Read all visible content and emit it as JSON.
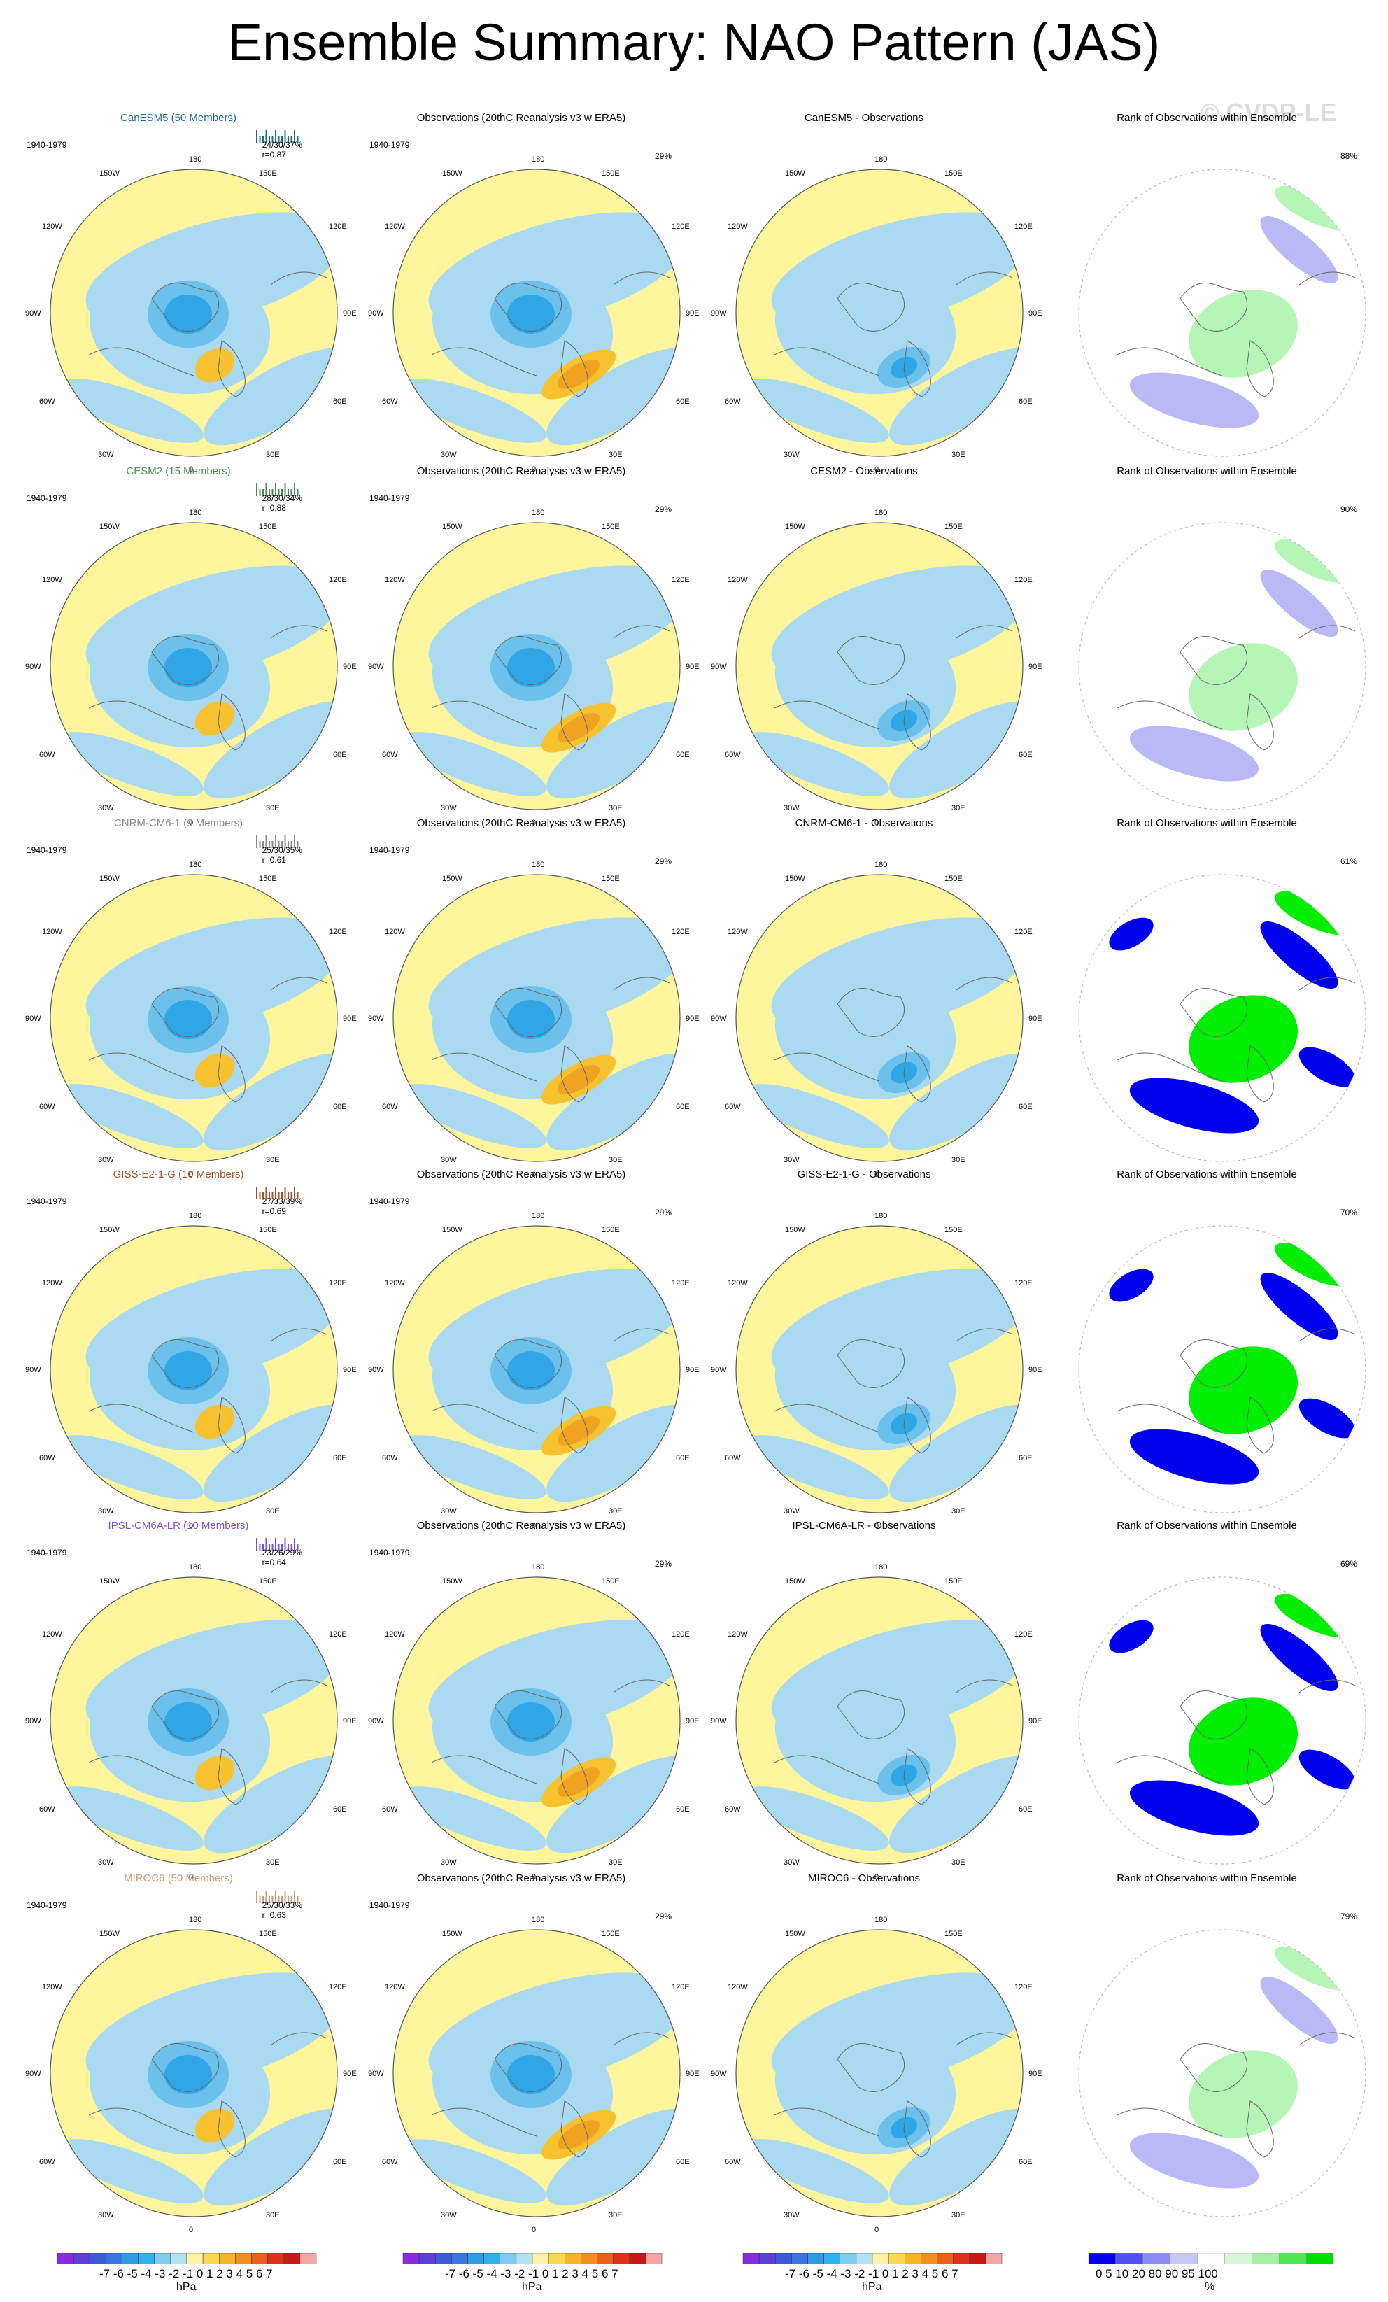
{
  "title": "Ensemble Summary: NAO Pattern (JAS)",
  "watermark": "© CVDP-LE",
  "colors": {
    "pos_light": "#fff59d",
    "neg_light": "#a9daf2",
    "neg_mid": "#6cc0ec",
    "neg_dark": "#31a6e6",
    "pos_mid": "#f7c12f",
    "pos_dark": "#f0a321",
    "rank_low": "#0000ee",
    "rank_lowmid": "#b9b9f5",
    "rank_high": "#00ee00"
  },
  "col_titles": {
    "obs": "Observations (20thC Reanalysis v3 w ERA5)",
    "rank": "Rank of Observations within Ensemble"
  },
  "period": "1940-1979",
  "obs_pct": "29%",
  "lon_labels": {
    "top": "180",
    "bottom": "0",
    "tl": "150W",
    "tr": "150E",
    "ul": "120W",
    "ur": "120E",
    "ml": "90W",
    "mr": "90E",
    "ll": "60W",
    "lr": "60E",
    "bl": "30W",
    "br": "30E"
  },
  "rows": [
    {
      "model": "CanESM5 (50 Members)",
      "model_color": "#1c6c8c",
      "stats": "24/30/37%",
      "r": "r=0.87",
      "diff_title": "CanESM5 - Observations",
      "rank_pct": "88%"
    },
    {
      "model": "CESM2 (15 Members)",
      "model_color": "#4a8b5a",
      "stats": "28/30/34%",
      "r": "r=0.88",
      "diff_title": "CESM2 - Observations",
      "rank_pct": "90%"
    },
    {
      "model": "CNRM-CM6-1 (9 Members)",
      "model_color": "#8a8a8a",
      "stats": "25/30/35%",
      "r": "r=0.61",
      "diff_title": "CNRM-CM6-1 - Observations",
      "rank_pct": "61%"
    },
    {
      "model": "GISS-E2-1-G (10 Members)",
      "model_color": "#a0522d",
      "stats": "27/33/39%",
      "r": "r=0.69",
      "diff_title": "GISS-E2-1-G - Observations",
      "rank_pct": "70%"
    },
    {
      "model": "IPSL-CM6A-LR (10 Members)",
      "model_color": "#7b4fd6",
      "stats": "23/26/29%",
      "r": "r=0.64",
      "diff_title": "IPSL-CM6A-LR - Observations",
      "rank_pct": "69%"
    },
    {
      "model": "MIROC6 (50 Members)",
      "model_color": "#c9a07a",
      "stats": "25/30/33%",
      "r": "r=0.63",
      "diff_title": "MIROC6 - Observations",
      "rank_pct": "79%"
    }
  ],
  "colorbar_hpa": {
    "labels": "-7 -6 -5 -4 -3 -2 -1 0  1  2  3  4  5  6  7",
    "unit": "hPa",
    "colors": [
      "#8a2be2",
      "#5b3fd6",
      "#3d5ad8",
      "#3b76e0",
      "#2f9be6",
      "#31b0ee",
      "#7fcdf2",
      "#b3e1f6",
      "#fff3a6",
      "#fbd94f",
      "#f9b52a",
      "#f28f1f",
      "#ec5f1a",
      "#e0321a",
      "#c81818",
      "#f4a6a6"
    ]
  },
  "colorbar_rank": {
    "labels": "0   5  10   20    80    90  95 100",
    "unit": "%",
    "colors": [
      "#0000ee",
      "#4f4ff2",
      "#8c8cf4",
      "#c8c8f8",
      "#ffffff",
      "#d6f7d6",
      "#a5f0a5",
      "#4ee64e",
      "#00dd00"
    ]
  }
}
